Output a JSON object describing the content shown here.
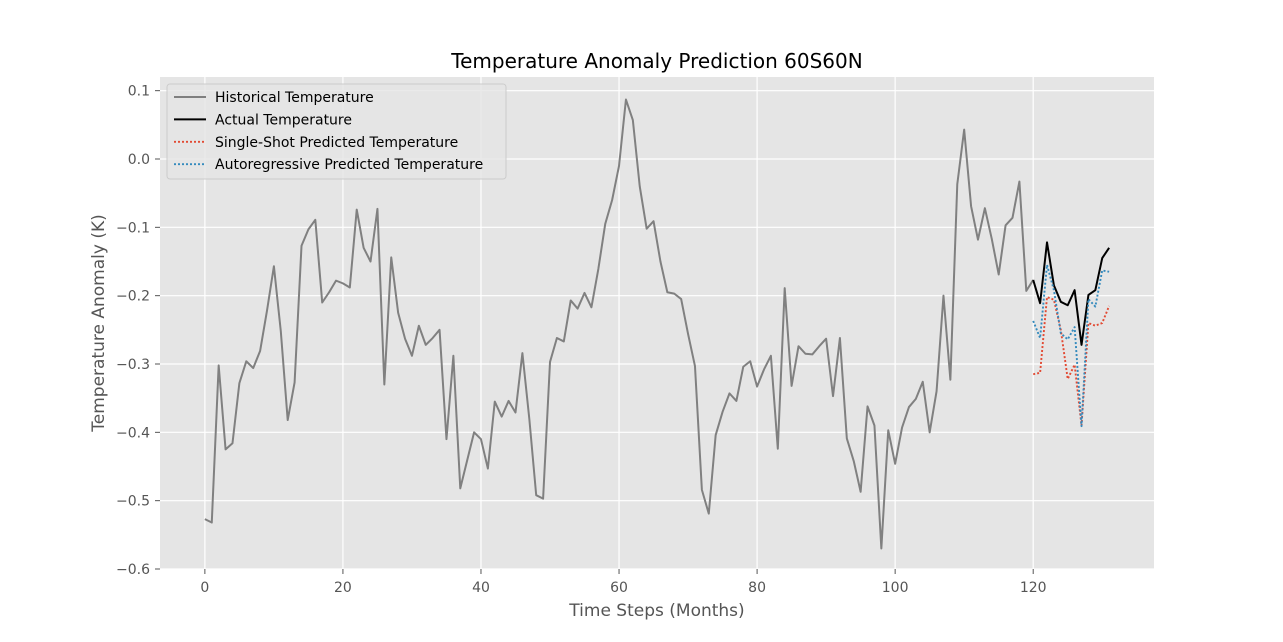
{
  "chart_data": {
    "type": "line",
    "title": "Temperature Anomaly Prediction 60S60N",
    "xlabel": "Time Steps (Months)",
    "ylabel": "Temperature Anomaly (K)",
    "xlim": [
      -6.5,
      137.5
    ],
    "ylim": [
      -0.6,
      0.12
    ],
    "x_ticks": [
      0,
      20,
      40,
      60,
      80,
      100,
      120
    ],
    "x_tick_labels": [
      "0",
      "20",
      "40",
      "60",
      "80",
      "100",
      "120"
    ],
    "y_ticks": [
      0.1,
      0.0,
      -0.1,
      -0.2,
      -0.3,
      -0.4,
      -0.5,
      -0.6
    ],
    "y_tick_labels": [
      "0.1",
      "0.0",
      "−0.1",
      "−0.2",
      "−0.3",
      "−0.4",
      "−0.5",
      "−0.6"
    ],
    "grid": true,
    "legend_position": "top-left",
    "series": [
      {
        "name": "Historical Temperature",
        "color": "#808080",
        "style": "solid",
        "x_start": 0,
        "values": [
          -0.527,
          -0.532,
          -0.302,
          -0.425,
          -0.416,
          -0.328,
          -0.296,
          -0.306,
          -0.281,
          -0.222,
          -0.157,
          -0.252,
          -0.382,
          -0.327,
          -0.127,
          -0.103,
          -0.089,
          -0.21,
          -0.195,
          -0.178,
          -0.182,
          -0.188,
          -0.074,
          -0.13,
          -0.15,
          -0.073,
          -0.33,
          -0.144,
          -0.225,
          -0.263,
          -0.288,
          -0.244,
          -0.272,
          -0.262,
          -0.25,
          -0.41,
          -0.288,
          -0.482,
          -0.441,
          -0.4,
          -0.41,
          -0.453,
          -0.355,
          -0.377,
          -0.354,
          -0.371,
          -0.284,
          -0.38,
          -0.492,
          -0.497,
          -0.297,
          -0.262,
          -0.267,
          -0.207,
          -0.219,
          -0.196,
          -0.217,
          -0.161,
          -0.095,
          -0.06,
          -0.01,
          0.087,
          0.057,
          -0.04,
          -0.102,
          -0.091,
          -0.15,
          -0.195,
          -0.197,
          -0.205,
          -0.256,
          -0.303,
          -0.484,
          -0.519,
          -0.404,
          -0.37,
          -0.343,
          -0.354,
          -0.304,
          -0.296,
          -0.333,
          -0.308,
          -0.288,
          -0.424,
          -0.189,
          -0.332,
          -0.274,
          -0.285,
          -0.286,
          -0.274,
          -0.263,
          -0.347,
          -0.262,
          -0.409,
          -0.442,
          -0.487,
          -0.362,
          -0.39,
          -0.57,
          -0.397,
          -0.446,
          -0.393,
          -0.363,
          -0.351,
          -0.326,
          -0.4,
          -0.34,
          -0.2,
          -0.323,
          -0.037,
          0.043,
          -0.069,
          -0.118,
          -0.072,
          -0.117,
          -0.169,
          -0.097,
          -0.086,
          -0.033,
          -0.193,
          -0.177
        ]
      },
      {
        "name": "Actual Temperature",
        "color": "#000000",
        "style": "solid",
        "x_start": 120,
        "values": [
          -0.177,
          -0.211,
          -0.122,
          -0.185,
          -0.209,
          -0.214,
          -0.192,
          -0.272,
          -0.199,
          -0.192,
          -0.145,
          -0.13
        ]
      },
      {
        "name": "Single-Shot Predicted Temperature",
        "color": "#e24a33",
        "style": "dotted",
        "x_start": 120,
        "values": [
          -0.315,
          -0.313,
          -0.202,
          -0.206,
          -0.25,
          -0.322,
          -0.301,
          -0.39,
          -0.24,
          -0.244,
          -0.24,
          -0.215
        ]
      },
      {
        "name": "Autoregressive Predicted Temperature",
        "color": "#348abd",
        "style": "dotted",
        "x_start": 120,
        "values": [
          -0.237,
          -0.262,
          -0.155,
          -0.192,
          -0.255,
          -0.264,
          -0.246,
          -0.391,
          -0.205,
          -0.216,
          -0.163,
          -0.165
        ]
      }
    ]
  }
}
